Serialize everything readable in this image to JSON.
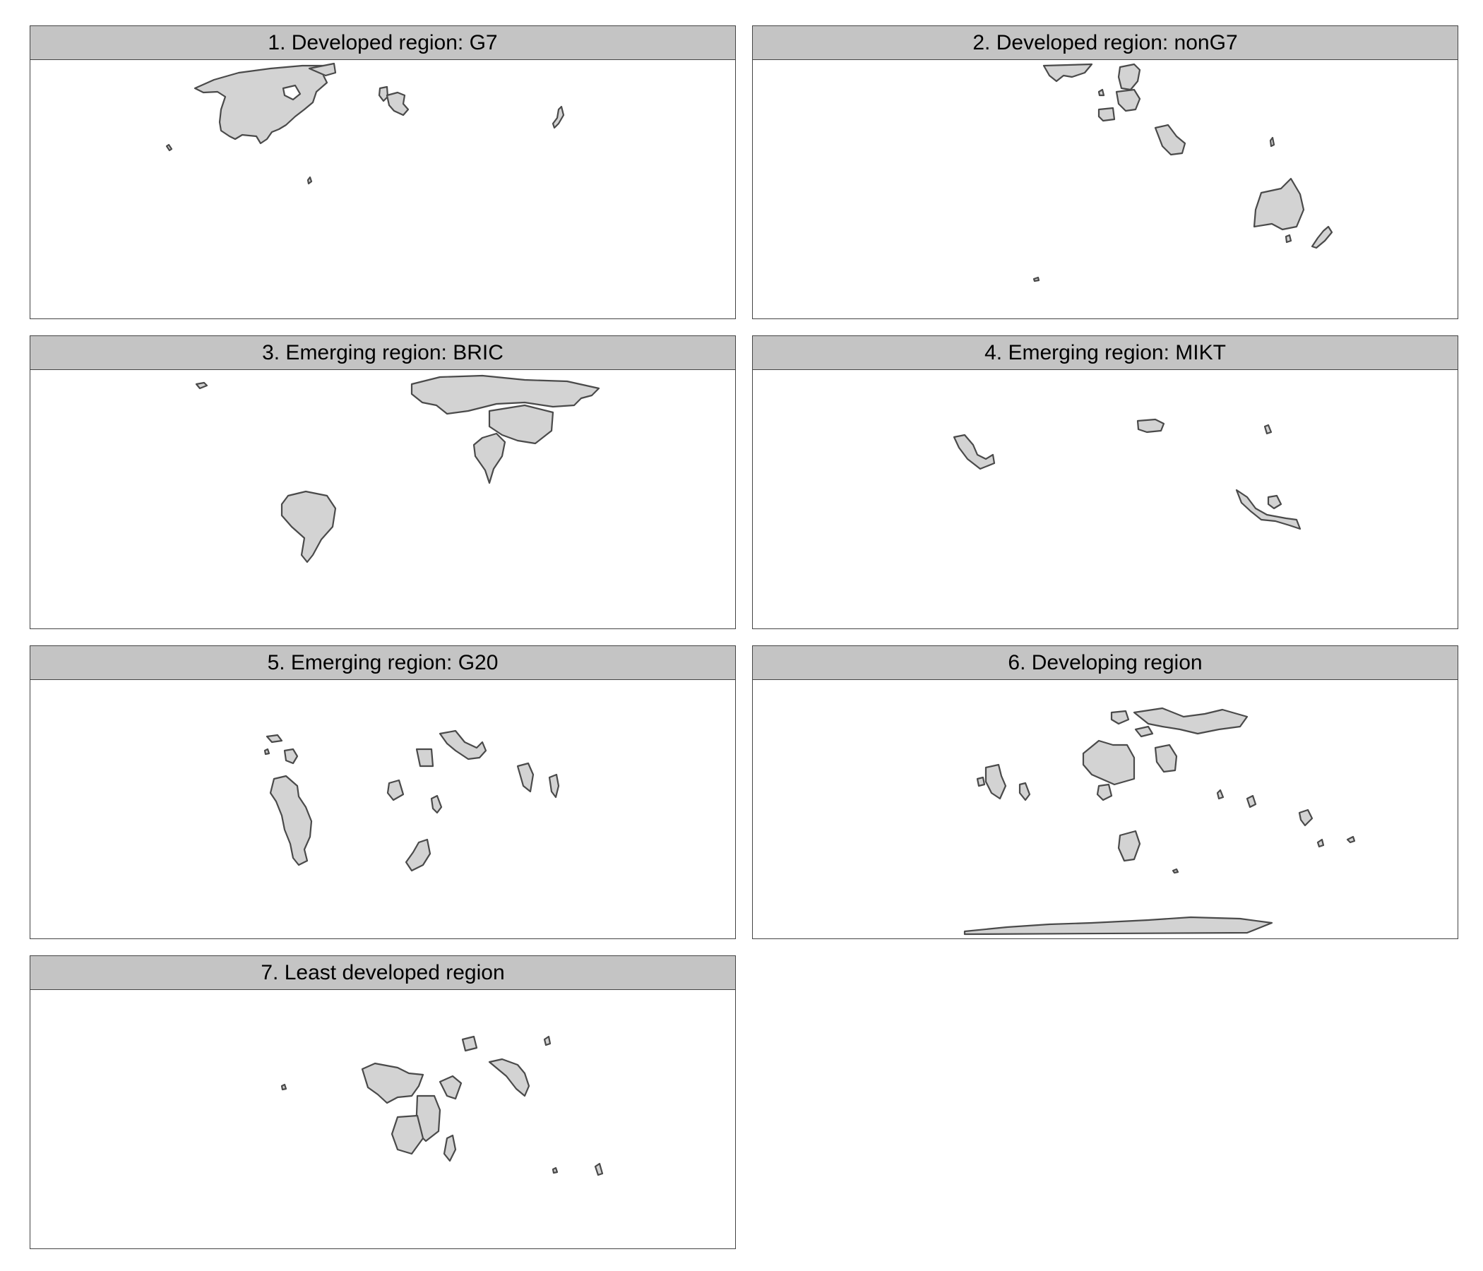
{
  "figure": {
    "panels": [
      {
        "id": 1,
        "title": "1. Developed region: G7"
      },
      {
        "id": 2,
        "title": "2. Developed region: nonG7"
      },
      {
        "id": 3,
        "title": "3. Emerging region: BRIC"
      },
      {
        "id": 4,
        "title": "4. Emerging region: MIKT"
      },
      {
        "id": 5,
        "title": "5. Emerging region: G20"
      },
      {
        "id": 6,
        "title": "6. Developing region"
      },
      {
        "id": 7,
        "title": "7. Least developed region"
      }
    ],
    "colors": {
      "land_fill": "#d3d3d3",
      "land_outline": "#4a4a4a",
      "strip_background": "#c4c4c4",
      "panel_border": "#444444",
      "background": "#ffffff"
    }
  }
}
